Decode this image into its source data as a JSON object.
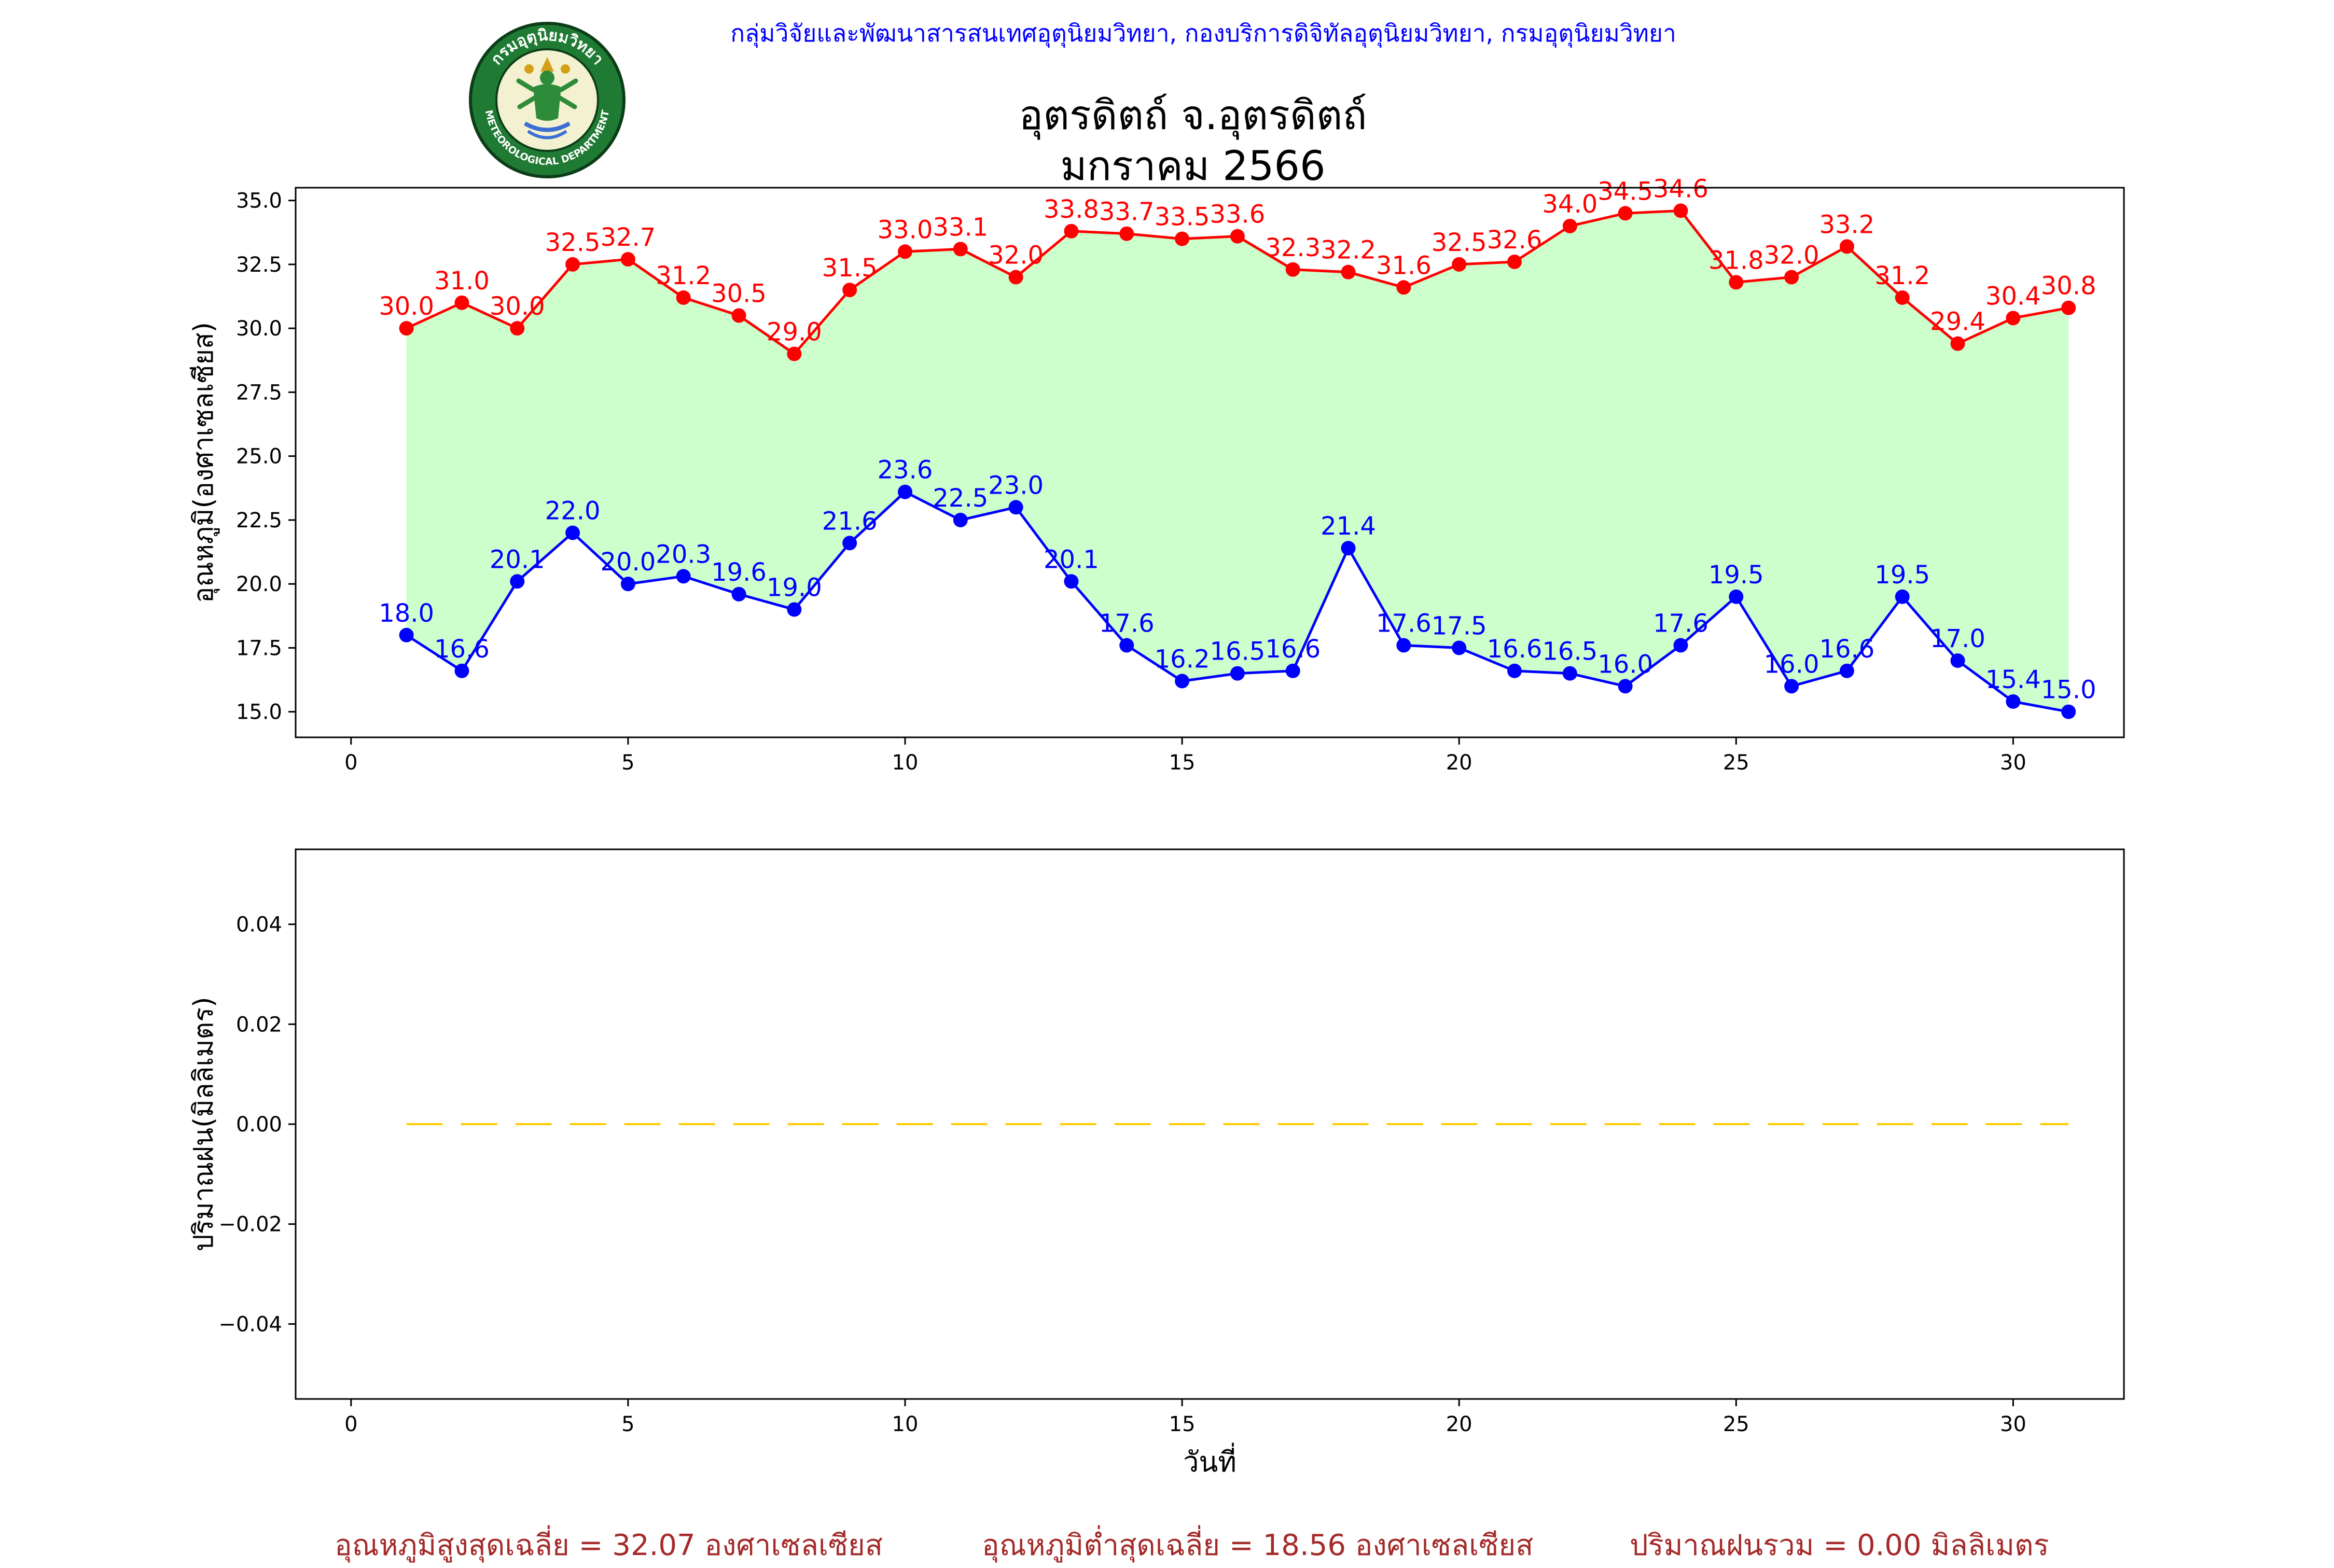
{
  "header": {
    "credit": "กลุ่มวิจัยและพัฒนาสารสนเทศอุตุนิยมวิทยา, กองบริการดิจิทัลอุตุนิยมวิทยา, กรมอุตุนิยมวิทยา",
    "title_line1": "อุตรดิตถ์ จ.อุตรดิตถ์",
    "title_line2": "มกราคม 2566",
    "logo": {
      "name": "meteorological-department-seal",
      "text_top": "กรมอุตุนิยมวิทยา",
      "text_bottom": "METEOROLOGICAL DEPARTMENT"
    }
  },
  "summary": {
    "avg_max": "อุณหภูมิสูงสุดเฉลี่ย = 32.07 องศาเซลเซียส",
    "avg_min": "อุณหภูมิต่ำสุดเฉลี่ย = 18.56 องศาเซลเซียส",
    "total_rain": "ปริมาณฝนรวม = 0.00 มิลลิเมตร"
  },
  "chart_data": [
    {
      "type": "line",
      "ylabel": "อุณหภูมิ(องศาเซลเซียส)",
      "xlabel": "",
      "xlim": [
        -1.0,
        32.0
      ],
      "ylim": [
        14.0,
        35.5
      ],
      "xticks": [
        0,
        5,
        10,
        15,
        20,
        25,
        30
      ],
      "yticks": [
        "15.0",
        "17.5",
        "20.0",
        "22.5",
        "25.0",
        "27.5",
        "30.0",
        "32.5",
        "35.0"
      ],
      "grid": false,
      "fill_between": "#ccffcc",
      "x": [
        1,
        2,
        3,
        4,
        5,
        6,
        7,
        8,
        9,
        10,
        11,
        12,
        13,
        14,
        15,
        16,
        17,
        18,
        19,
        20,
        21,
        22,
        23,
        24,
        25,
        26,
        27,
        28,
        29,
        30,
        31
      ],
      "series": [
        {
          "color": "#ff0000",
          "values": [
            30.0,
            31.0,
            30.0,
            32.5,
            32.7,
            31.2,
            30.5,
            29.0,
            31.5,
            33.0,
            33.1,
            32.0,
            33.8,
            33.7,
            33.5,
            33.6,
            32.3,
            32.2,
            31.6,
            32.5,
            32.6,
            34.0,
            34.5,
            34.6,
            31.8,
            32.0,
            33.2,
            31.2,
            29.4,
            30.4,
            30.8
          ]
        },
        {
          "color": "#0000ff",
          "values": [
            18.0,
            16.6,
            20.1,
            22.0,
            20.0,
            20.3,
            19.6,
            19.0,
            21.6,
            23.6,
            22.5,
            23.0,
            20.1,
            17.6,
            16.2,
            16.5,
            16.6,
            21.4,
            17.6,
            17.5,
            16.6,
            16.5,
            16.0,
            17.6,
            19.5,
            16.0,
            16.6,
            19.5,
            17.0,
            15.4,
            15.0
          ]
        }
      ]
    },
    {
      "type": "line",
      "ylabel": "ปริมาณฝน(มิลลิเมตร)",
      "xlabel": "วันที่",
      "xlim": [
        -1.0,
        32.0
      ],
      "ylim": [
        -0.055,
        0.055
      ],
      "xticks": [
        0,
        5,
        10,
        15,
        20,
        25,
        30
      ],
      "yticks": [
        "−0.04",
        "−0.02",
        "0.00",
        "0.02",
        "0.04"
      ],
      "grid": false,
      "x": [
        1,
        2,
        3,
        4,
        5,
        6,
        7,
        8,
        9,
        10,
        11,
        12,
        13,
        14,
        15,
        16,
        17,
        18,
        19,
        20,
        21,
        22,
        23,
        24,
        25,
        26,
        27,
        28,
        29,
        30,
        31
      ],
      "series": [
        {
          "color": "#ffcc00",
          "style": "dashed",
          "values": [
            0,
            0,
            0,
            0,
            0,
            0,
            0,
            0,
            0,
            0,
            0,
            0,
            0,
            0,
            0,
            0,
            0,
            0,
            0,
            0,
            0,
            0,
            0,
            0,
            0,
            0,
            0,
            0,
            0,
            0,
            0
          ]
        }
      ]
    }
  ]
}
